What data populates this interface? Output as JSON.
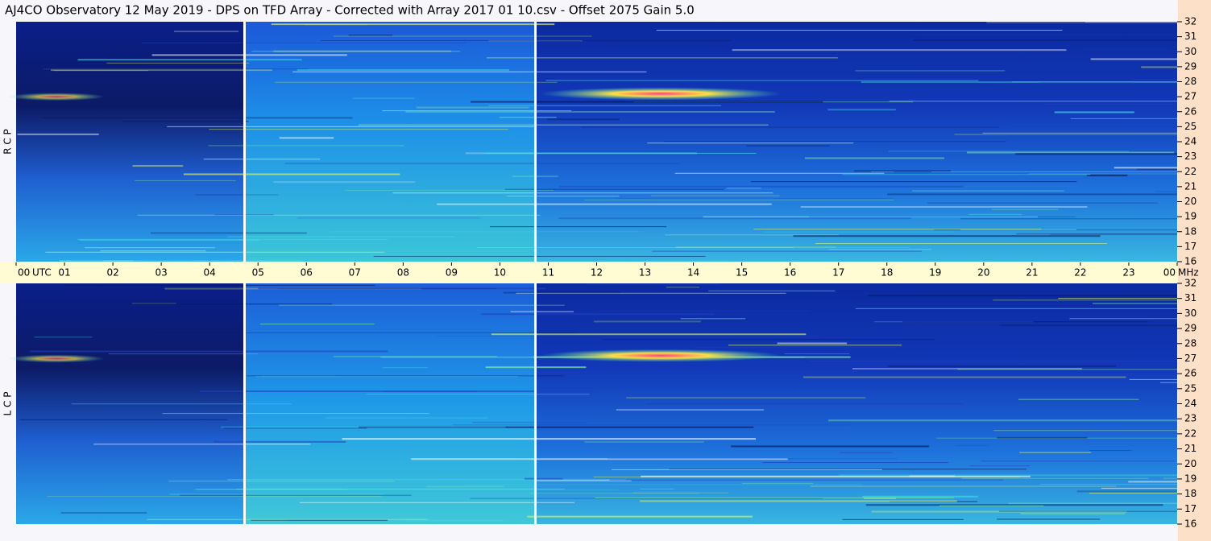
{
  "title": "AJ4CO Observatory  12 May 2019  -  DPS on TFD Array  -  Corrected with Array 2017 01 10.csv  -  Offset 2075  Gain 5.0",
  "chart_data": {
    "type": "spectrogram",
    "x_label": "UTC",
    "y_label": "MHz",
    "categories": [
      "00",
      "01",
      "02",
      "03",
      "04",
      "05",
      "06",
      "07",
      "08",
      "09",
      "10",
      "11",
      "12",
      "13",
      "14",
      "15",
      "16",
      "17",
      "18",
      "19",
      "20",
      "21",
      "22",
      "23",
      "00"
    ],
    "ylim": [
      16,
      32
    ],
    "yticks": [
      16,
      17,
      18,
      19,
      20,
      21,
      22,
      23,
      24,
      25,
      26,
      27,
      28,
      29,
      30,
      31,
      32
    ],
    "panels": [
      {
        "label": "R C P"
      },
      {
        "label": "L C P"
      }
    ]
  }
}
